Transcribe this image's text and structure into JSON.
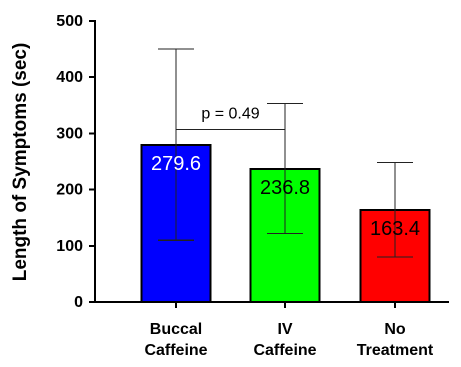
{
  "chart_data": {
    "type": "bar",
    "title": "",
    "xlabel": "",
    "ylabel": "Length of Symptoms (sec)",
    "ylim": [
      0,
      500
    ],
    "yticks": [
      0,
      100,
      200,
      300,
      400,
      500
    ],
    "grid": false,
    "categories": [
      [
        "Buccal",
        "Caffeine"
      ],
      [
        "IV",
        "Caffeine"
      ],
      [
        "No",
        "Treatment"
      ]
    ],
    "values": [
      279.6,
      236.8,
      163.4
    ],
    "value_labels": [
      "279.6",
      "236.8",
      "163.4"
    ],
    "error_low": [
      110,
      122,
      80
    ],
    "error_high": [
      450,
      353,
      248
    ],
    "bar_colors": [
      "#0000ff",
      "#00ff00",
      "#ff0000"
    ],
    "label_colors": [
      "#ffffff",
      "#000000",
      "#000000"
    ],
    "annotations": [
      {
        "text": "p = 0.49",
        "from_category": 0,
        "to_category": 1,
        "y": 307
      }
    ]
  }
}
